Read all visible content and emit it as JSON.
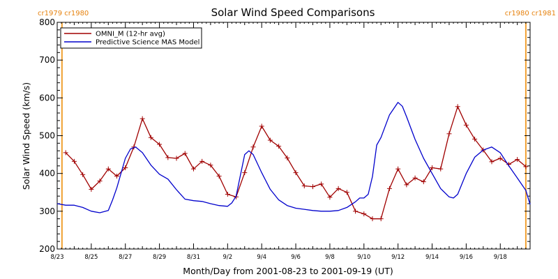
{
  "chart_data": {
    "type": "line",
    "title": "Solar Wind Speed Comparisons",
    "xlabel": "Month/Day from 2001-08-23 to 2001-09-19 (UT)",
    "ylabel": "Solar Wind Speed (km/s)",
    "xlim": [
      0,
      27.75
    ],
    "ylim": [
      200,
      800
    ],
    "yticks": [
      200,
      300,
      400,
      500,
      600,
      700,
      800
    ],
    "xticks": [
      {
        "day": 0,
        "label": "8/23"
      },
      {
        "day": 2,
        "label": "8/25"
      },
      {
        "day": 4,
        "label": "8/27"
      },
      {
        "day": 6,
        "label": "8/29"
      },
      {
        "day": 8,
        "label": "8/31"
      },
      {
        "day": 10,
        "label": "9/2"
      },
      {
        "day": 12,
        "label": "9/4"
      },
      {
        "day": 14,
        "label": "9/6"
      },
      {
        "day": 16,
        "label": "9/8"
      },
      {
        "day": 18,
        "label": "9/10"
      },
      {
        "day": 20,
        "label": "9/12"
      },
      {
        "day": 22,
        "label": "9/14"
      },
      {
        "day": 24,
        "label": "9/16"
      },
      {
        "day": 26,
        "label": "9/18"
      }
    ],
    "carrington_markers": [
      {
        "day": 0.28,
        "label": "cr1979 cr1980",
        "side": "left"
      },
      {
        "day": 27.5,
        "label": "cr1980 cr1981",
        "side": "right"
      }
    ],
    "legend": {
      "placement": "top-left"
    },
    "grid": false,
    "series": [
      {
        "name": "OMNI_M (12-hr avg)",
        "color": "#a00000",
        "marker": "plus",
        "x": [
          0.5,
          1.0,
          1.5,
          2.0,
          2.5,
          3.0,
          3.5,
          4.0,
          4.5,
          5.0,
          5.5,
          6.0,
          6.5,
          7.0,
          7.5,
          8.0,
          8.5,
          9.0,
          9.5,
          10.0,
          10.5,
          11.0,
          11.5,
          12.0,
          12.5,
          13.0,
          13.5,
          14.0,
          14.5,
          15.0,
          15.5,
          16.0,
          16.5,
          17.0,
          17.5,
          18.0,
          18.5,
          19.0,
          19.5,
          20.0,
          20.5,
          21.0,
          21.5,
          22.0,
          22.5,
          23.0,
          23.5,
          24.0,
          24.5,
          25.0,
          25.5,
          26.0,
          26.5,
          27.0,
          27.5
        ],
        "values": [
          455,
          432,
          397,
          358,
          380,
          412,
          393,
          415,
          470,
          545,
          495,
          477,
          442,
          440,
          453,
          412,
          432,
          422,
          393,
          345,
          338,
          402,
          470,
          525,
          488,
          472,
          441,
          402,
          367,
          365,
          372,
          337,
          360,
          350,
          300,
          293,
          280,
          280,
          360,
          412,
          370,
          388,
          378,
          415,
          412,
          505,
          577,
          528,
          491,
          462,
          431,
          440,
          424,
          437,
          418
        ]
      },
      {
        "name": "Predictive Science MAS Model",
        "color": "#0000cc",
        "marker": "none",
        "x": [
          0.0,
          0.5,
          1.0,
          1.5,
          2.0,
          2.5,
          3.0,
          3.25,
          3.5,
          4.0,
          4.3,
          4.6,
          5.0,
          5.5,
          6.0,
          6.5,
          7.0,
          7.5,
          8.0,
          8.5,
          9.0,
          9.5,
          10.0,
          10.25,
          10.5,
          11.0,
          11.25,
          11.5,
          12.0,
          12.5,
          13.0,
          13.5,
          14.0,
          14.5,
          15.0,
          15.5,
          16.0,
          16.5,
          17.0,
          17.5,
          17.75,
          18.0,
          18.25,
          18.5,
          18.75,
          19.0,
          19.5,
          20.0,
          20.25,
          20.5,
          21.0,
          21.5,
          22.0,
          22.5,
          23.0,
          23.25,
          23.5,
          24.0,
          24.5,
          25.0,
          25.5,
          26.0,
          26.5,
          27.0,
          27.5,
          27.75
        ],
        "values": [
          320,
          316,
          316,
          310,
          300,
          296,
          302,
          330,
          362,
          440,
          465,
          470,
          455,
          422,
          398,
          385,
          357,
          332,
          328,
          326,
          320,
          315,
          313,
          322,
          340,
          450,
          460,
          450,
          402,
          358,
          330,
          315,
          308,
          305,
          302,
          300,
          300,
          302,
          310,
          325,
          335,
          335,
          345,
          392,
          475,
          495,
          555,
          588,
          578,
          550,
          490,
          440,
          400,
          360,
          338,
          335,
          345,
          400,
          443,
          462,
          470,
          455,
          420,
          388,
          355,
          318
        ]
      }
    ]
  }
}
